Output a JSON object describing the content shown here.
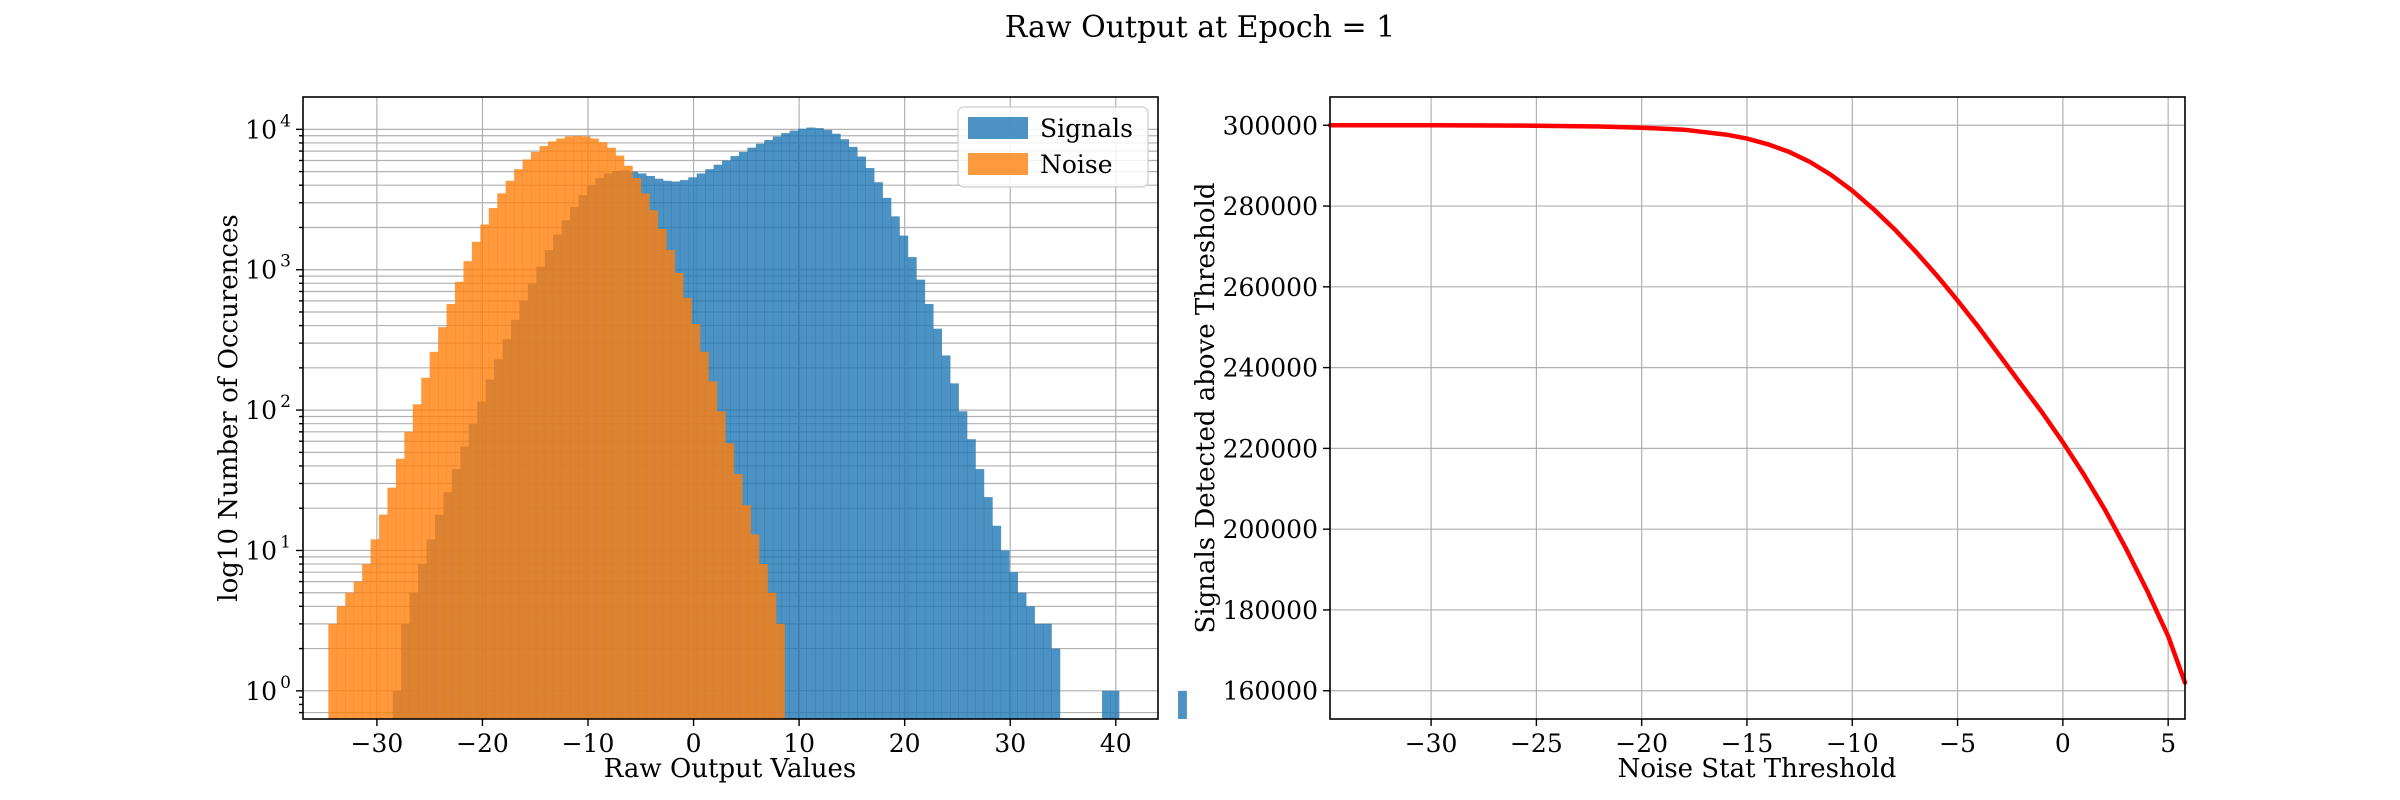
{
  "figure": {
    "title": "Raw Output at Epoch = 1"
  },
  "colors": {
    "signals": "#1f77b4",
    "noise": "#ff7f0e",
    "curve": "#ff0000",
    "grid": "#b0b0b0"
  },
  "chart_data": [
    {
      "type": "bar",
      "subtype": "histogram",
      "xlabel": "Raw Output Values",
      "ylabel": "log10 Number of Occurences",
      "xlim": [
        -37,
        44
      ],
      "ylim": [
        0.63,
        17000
      ],
      "yscale": "log",
      "grid": true,
      "legend": {
        "placement": "top-right"
      },
      "xticks": [
        -30,
        -20,
        -10,
        0,
        10,
        20,
        30,
        40
      ],
      "xtick_labels": [
        "−30",
        "−20",
        "−10",
        "0",
        "10",
        "20",
        "30",
        "40"
      ],
      "yticks": [
        1,
        10,
        100,
        1000,
        10000
      ],
      "ytick_labels": [
        {
          "base": "10",
          "exp": "0"
        },
        {
          "base": "10",
          "exp": "1"
        },
        {
          "base": "10",
          "exp": "2"
        },
        {
          "base": "10",
          "exp": "3"
        },
        {
          "base": "10",
          "exp": "4"
        }
      ],
      "bin_width": 0.8,
      "alpha": 0.8,
      "series": [
        {
          "name": "Signals",
          "bin_start": -28.5,
          "values": [
            1,
            3,
            5,
            8,
            12,
            18,
            26,
            38,
            55,
            80,
            115,
            165,
            230,
            320,
            440,
            600,
            800,
            1050,
            1380,
            1780,
            2250,
            2800,
            3400,
            4000,
            4500,
            4850,
            5050,
            5100,
            5000,
            4850,
            4650,
            4450,
            4300,
            4250,
            4350,
            4550,
            4850,
            5200,
            5600,
            6000,
            6450,
            6900,
            7400,
            7900,
            8400,
            8900,
            9400,
            9800,
            10100,
            10300,
            10200,
            9900,
            9300,
            8500,
            7500,
            6400,
            5300,
            4200,
            3250,
            2400,
            1750,
            1230,
            850,
            570,
            380,
            245,
            155,
            98,
            62,
            38,
            24,
            15,
            10,
            7,
            5,
            4,
            3,
            3,
            2,
            0,
            0,
            0,
            0,
            0,
            1,
            1,
            0,
            0,
            0,
            0,
            0,
            0,
            0,
            1
          ]
        },
        {
          "name": "Noise",
          "bin_start": -34.6,
          "values": [
            3,
            4,
            5,
            6,
            8,
            12,
            18,
            28,
            45,
            70,
            110,
            170,
            260,
            390,
            570,
            820,
            1150,
            1580,
            2100,
            2750,
            3500,
            4300,
            5200,
            6100,
            6900,
            7600,
            8200,
            8600,
            8900,
            9000,
            8900,
            8600,
            8100,
            7400,
            6500,
            5500,
            4500,
            3500,
            2650,
            1950,
            1380,
            950,
            630,
            410,
            260,
            160,
            98,
            58,
            35,
            21,
            13,
            8,
            5,
            3
          ]
        }
      ]
    },
    {
      "type": "line",
      "xlabel": "Noise Stat Threshold",
      "ylabel": "Signals Detected above Threshold",
      "xlim": [
        -34.8,
        5.8
      ],
      "ylim": [
        153000,
        307000
      ],
      "grid": true,
      "xticks": [
        -30,
        -25,
        -20,
        -15,
        -10,
        -5,
        0,
        5
      ],
      "xtick_labels": [
        "−30",
        "−25",
        "−20",
        "−15",
        "−10",
        "−5",
        "0",
        "5"
      ],
      "yticks": [
        160000,
        180000,
        200000,
        220000,
        240000,
        260000,
        280000,
        300000
      ],
      "ytick_labels": [
        "160000",
        "180000",
        "200000",
        "220000",
        "240000",
        "260000",
        "280000",
        "300000"
      ],
      "series": [
        {
          "x": [
            -34.8,
            -30,
            -25,
            -22,
            -20,
            -18,
            -16,
            -15,
            -14,
            -13,
            -12,
            -11,
            -10,
            -9,
            -8,
            -7,
            -6,
            -5,
            -4,
            -3,
            -2,
            -1,
            0,
            1,
            2,
            3,
            4,
            5,
            5.8
          ],
          "y": [
            300000,
            300000,
            299900,
            299700,
            299400,
            298900,
            297700,
            296700,
            295300,
            293400,
            290900,
            287700,
            283800,
            279300,
            274300,
            268800,
            262900,
            256600,
            250000,
            243000,
            236000,
            229000,
            221500,
            213500,
            204800,
            195200,
            184800,
            173500,
            162000
          ]
        }
      ]
    }
  ]
}
